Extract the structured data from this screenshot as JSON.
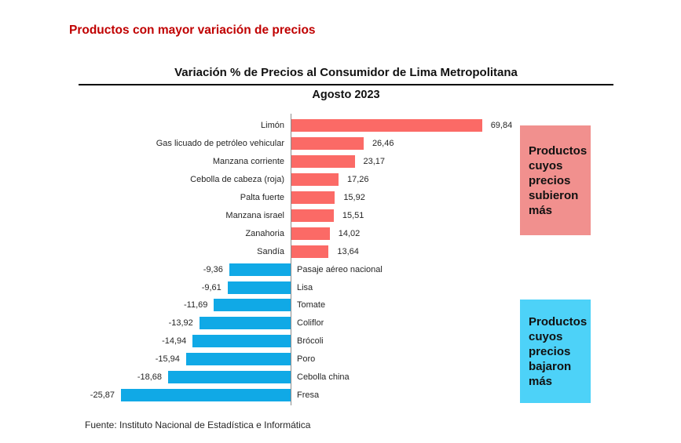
{
  "page": {
    "heading": "Productos con mayor variación de precios",
    "source": "Fuente: Instituto Nacional de Estadística e Informática"
  },
  "chart_data": {
    "type": "bar",
    "orientation": "horizontal",
    "title": "Variación %  de Precios al Consumidor de Lima Metropolitana",
    "subtitle": "Agosto 2023",
    "categories": [
      "Limón",
      "Gas licuado de petróleo vehicular",
      "Manzana corriente",
      "Cebolla de cabeza (roja)",
      "Palta fuerte",
      "Manzana israel",
      "Zanahoria",
      "Sandía",
      "Pasaje aéreo nacional",
      "Lisa",
      "Tomate",
      "Coliflor",
      "Brócoli",
      "Poro",
      "Cebolla china",
      "Fresa"
    ],
    "values": [
      69.84,
      26.46,
      23.17,
      17.26,
      15.92,
      15.51,
      14.02,
      13.64,
      -9.36,
      -9.61,
      -11.69,
      -13.92,
      -14.94,
      -15.94,
      -18.68,
      -25.87
    ],
    "value_labels": [
      "69,84",
      "26,46",
      "23,17",
      "17,26",
      "15,92",
      "15,51",
      "14,02",
      "13,64",
      "-9,36",
      "-9,61",
      "-11,69",
      "-13,92",
      "-14,94",
      "-15,94",
      "-18,68",
      "-25,87"
    ],
    "colors": {
      "positive_bar": "#fb6a66",
      "negative_bar": "#10a9e6",
      "heading_red": "#c00000"
    },
    "layout_hints": {
      "value_labels_shown": true,
      "gridlines": false,
      "baseline_axis": "vertical zero line, category labels flip sides by sign",
      "scale_note": "positive and negative sides use different pixel scales in the source image"
    },
    "annotations": [
      {
        "text": "Productos cuyos precios subieron más",
        "color": "#f1908e"
      },
      {
        "text": "Productos cuyos precios bajaron más",
        "color": "#4dd2f8"
      }
    ]
  }
}
